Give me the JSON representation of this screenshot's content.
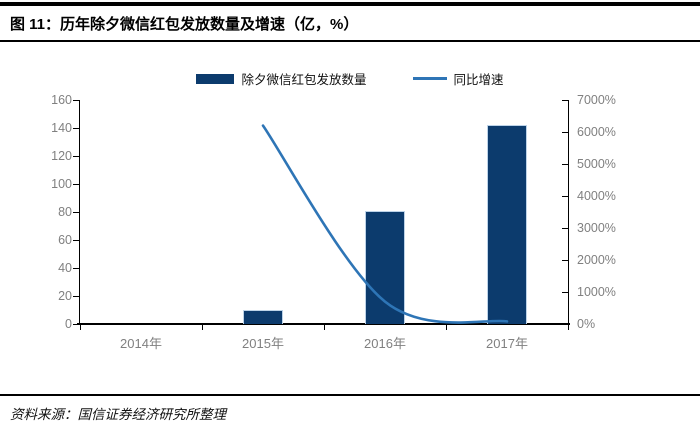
{
  "header": {
    "title": "图 11：历年除夕微信红包发放数量及增速（亿，%）"
  },
  "footer": {
    "source": "资料来源：国信证券经济研究所整理"
  },
  "colors": {
    "bar_fill": "#0C3B6D",
    "bar_edge": "#BDD3E8",
    "line": "#2E75B6",
    "axis_text": "#808080",
    "axis_line": "#000000",
    "title_text": "#000000"
  },
  "chart_data": {
    "type": "bar+line",
    "title": "历年除夕微信红包发放数量及增速（亿，%）",
    "categories": [
      "2014年",
      "2015年",
      "2016年",
      "2017年"
    ],
    "series": [
      {
        "name": "除夕微信红包发放数量",
        "type": "bar",
        "axis": "left",
        "unit": "亿",
        "values": [
          0,
          10,
          81,
          142
        ],
        "color": "#0C3B6D"
      },
      {
        "name": "同比增速",
        "type": "line",
        "axis": "right",
        "unit": "%",
        "values": [
          null,
          6200,
          700,
          80
        ],
        "color": "#2E75B6"
      }
    ],
    "left_axis": {
      "min": 0,
      "max": 160,
      "step": 20,
      "tick_labels": [
        "0",
        "20",
        "40",
        "60",
        "80",
        "100",
        "120",
        "140",
        "160"
      ]
    },
    "right_axis": {
      "min": 0,
      "max": 7000,
      "step": 1000,
      "tick_labels": [
        "0%",
        "1000%",
        "2000%",
        "3000%",
        "4000%",
        "5000%",
        "6000%",
        "7000%"
      ]
    },
    "legend_position": "top",
    "grid": false
  }
}
